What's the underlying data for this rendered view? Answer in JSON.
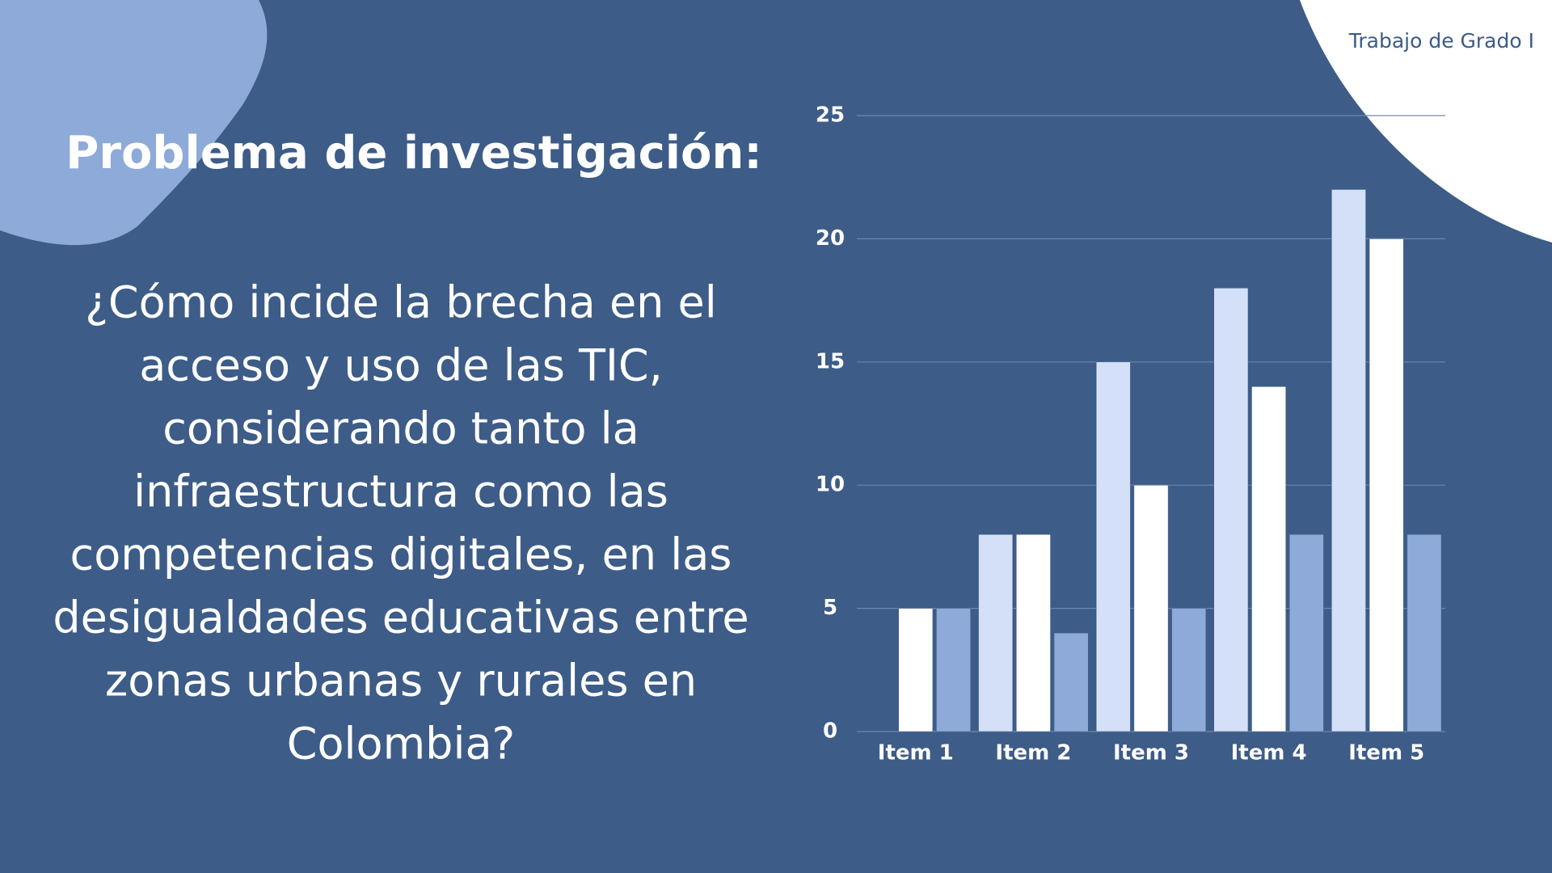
{
  "header": {
    "tag": "Trabajo de Grado I"
  },
  "title": "Problema de investigación:",
  "question_lines": [
    "¿Cómo incide la brecha en el",
    "acceso y uso de las TIC,",
    "considerando tanto la",
    "infraestructura como las",
    "competencias digitales, en las",
    "desigualdades educativas entre",
    "zonas urbanas y rurales en",
    "Colombia?"
  ],
  "chart_data": {
    "type": "bar",
    "categories": [
      "Item 1",
      "Item 2",
      "Item 3",
      "Item 4",
      "Item 5"
    ],
    "series": [
      {
        "color": "#d4e0f7",
        "values": [
          0,
          8,
          15,
          18,
          22
        ]
      },
      {
        "color": "#ffffff",
        "values": [
          5,
          8,
          10,
          14,
          20
        ]
      },
      {
        "color": "#8eaad8",
        "values": [
          5,
          4,
          5,
          8,
          8
        ]
      }
    ],
    "ylim": [
      0,
      25
    ],
    "yticks": [
      0,
      5,
      10,
      15,
      20,
      25
    ],
    "grid": true
  }
}
